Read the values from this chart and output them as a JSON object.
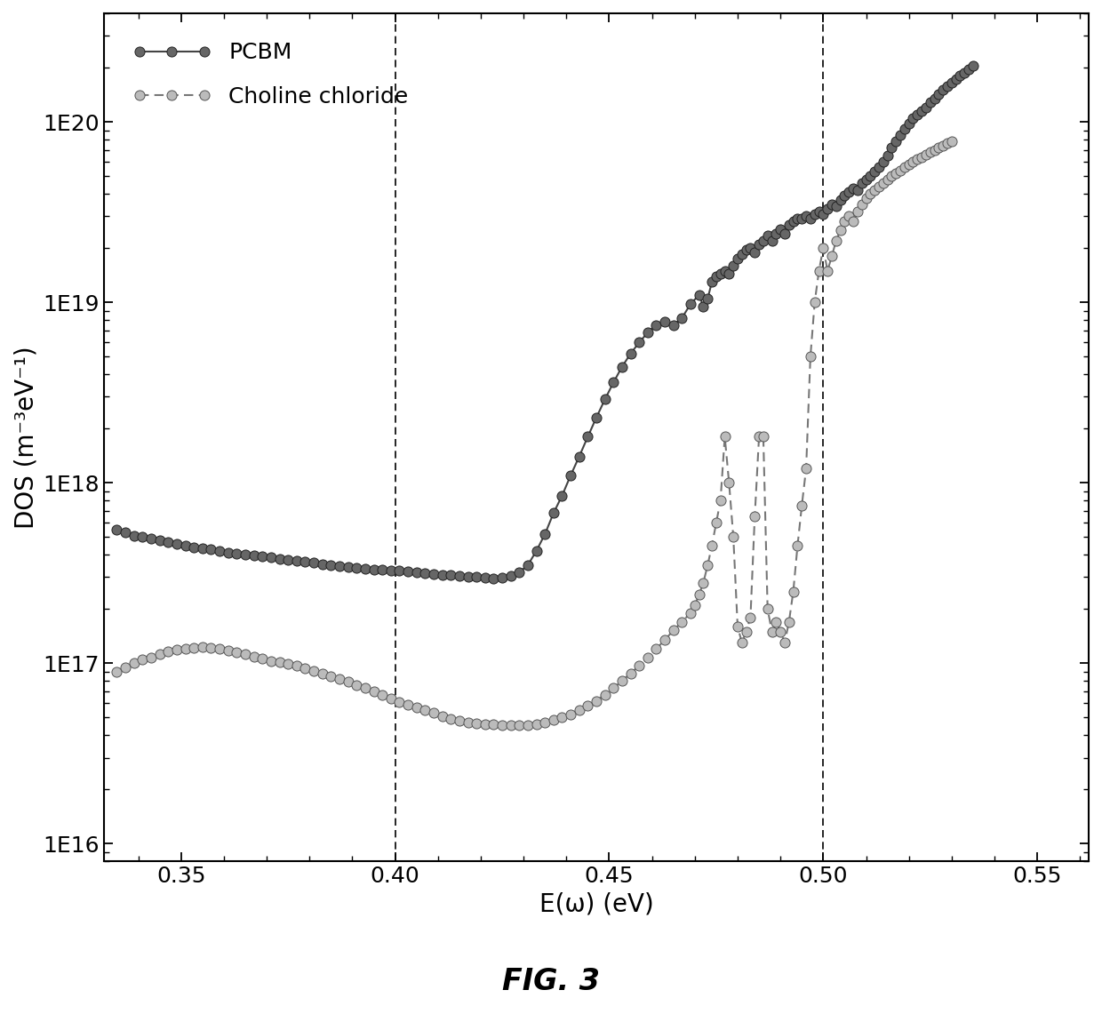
{
  "title": "FIG. 3",
  "xlabel": "E(ω) (eV)",
  "ylabel": "DOS (m⁻³eV⁻¹)",
  "xlim": [
    0.332,
    0.562
  ],
  "ylim_log": [
    8000000000000000.0,
    4e+20
  ],
  "vline1": 0.4,
  "vline2": 0.5,
  "background": "#ffffff",
  "pcbm_x": [
    0.335,
    0.337,
    0.339,
    0.341,
    0.343,
    0.345,
    0.347,
    0.349,
    0.351,
    0.353,
    0.355,
    0.357,
    0.359,
    0.361,
    0.363,
    0.365,
    0.367,
    0.369,
    0.371,
    0.373,
    0.375,
    0.377,
    0.379,
    0.381,
    0.383,
    0.385,
    0.387,
    0.389,
    0.391,
    0.393,
    0.395,
    0.397,
    0.399,
    0.401,
    0.403,
    0.405,
    0.407,
    0.409,
    0.411,
    0.413,
    0.415,
    0.417,
    0.419,
    0.421,
    0.423,
    0.425,
    0.427,
    0.429,
    0.431,
    0.433,
    0.435,
    0.437,
    0.439,
    0.441,
    0.443,
    0.445,
    0.447,
    0.449,
    0.451,
    0.453,
    0.455,
    0.457,
    0.459,
    0.461,
    0.463,
    0.465,
    0.467,
    0.469,
    0.471,
    0.472,
    0.473,
    0.474,
    0.475,
    0.476,
    0.477,
    0.478,
    0.479,
    0.48,
    0.481,
    0.482,
    0.483,
    0.484,
    0.485,
    0.486,
    0.487,
    0.488,
    0.489,
    0.49,
    0.491,
    0.492,
    0.493,
    0.494,
    0.495,
    0.496,
    0.497,
    0.498,
    0.499,
    0.5,
    0.501,
    0.502,
    0.503,
    0.504,
    0.505,
    0.506,
    0.507,
    0.508,
    0.509,
    0.51,
    0.511,
    0.512,
    0.513,
    0.514,
    0.515,
    0.516,
    0.517,
    0.518,
    0.519,
    0.52,
    0.521,
    0.522,
    0.523,
    0.524,
    0.525,
    0.526,
    0.527,
    0.528,
    0.529,
    0.53,
    0.531,
    0.532,
    0.533,
    0.534,
    0.535
  ],
  "pcbm_y": [
    5.5e+17,
    5.3e+17,
    5.1e+17,
    5e+17,
    4.9e+17,
    4.8e+17,
    4.7e+17,
    4.6e+17,
    4.5e+17,
    4.4e+17,
    4.35e+17,
    4.3e+17,
    4.2e+17,
    4.1e+17,
    4.05e+17,
    4e+17,
    3.95e+17,
    3.9e+17,
    3.85e+17,
    3.8e+17,
    3.75e+17,
    3.7e+17,
    3.65e+17,
    3.6e+17,
    3.55e+17,
    3.5e+17,
    3.45e+17,
    3.4e+17,
    3.38e+17,
    3.35e+17,
    3.32e+17,
    3.3e+17,
    3.28e+17,
    3.25e+17,
    3.22e+17,
    3.18e+17,
    3.15e+17,
    3.12e+17,
    3.1e+17,
    3.08e+17,
    3.05e+17,
    3.02e+17,
    3e+17,
    2.98e+17,
    2.96e+17,
    2.98e+17,
    3.05e+17,
    3.2e+17,
    3.5e+17,
    4.2e+17,
    5.2e+17,
    6.8e+17,
    8.5e+17,
    1.1e+18,
    1.4e+18,
    1.8e+18,
    2.3e+18,
    2.9e+18,
    3.6e+18,
    4.4e+18,
    5.2e+18,
    6e+18,
    6.8e+18,
    7.5e+18,
    7.8e+18,
    7.5e+18,
    8.2e+18,
    9.8e+18,
    1.1e+19,
    9.5e+18,
    1.05e+19,
    1.3e+19,
    1.4e+19,
    1.45e+19,
    1.5e+19,
    1.45e+19,
    1.6e+19,
    1.75e+19,
    1.85e+19,
    1.95e+19,
    2e+19,
    1.9e+19,
    2.1e+19,
    2.2e+19,
    2.35e+19,
    2.2e+19,
    2.4e+19,
    2.55e+19,
    2.4e+19,
    2.7e+19,
    2.8e+19,
    2.9e+19,
    2.9e+19,
    3e+19,
    2.9e+19,
    3.1e+19,
    3.2e+19,
    3.1e+19,
    3.3e+19,
    3.5e+19,
    3.4e+19,
    3.7e+19,
    3.9e+19,
    4.1e+19,
    4.3e+19,
    4.2e+19,
    4.6e+19,
    4.8e+19,
    5e+19,
    5.3e+19,
    5.6e+19,
    6e+19,
    6.5e+19,
    7.2e+19,
    7.8e+19,
    8.5e+19,
    9.2e+19,
    9.8e+19,
    1.05e+20,
    1.1e+20,
    1.15e+20,
    1.2e+20,
    1.28e+20,
    1.35e+20,
    1.42e+20,
    1.5e+20,
    1.58e+20,
    1.65e+20,
    1.72e+20,
    1.8e+20,
    1.88e+20,
    1.95e+20,
    2.05e+20
  ],
  "choline_x": [
    0.335,
    0.337,
    0.339,
    0.341,
    0.343,
    0.345,
    0.347,
    0.349,
    0.351,
    0.353,
    0.355,
    0.357,
    0.359,
    0.361,
    0.363,
    0.365,
    0.367,
    0.369,
    0.371,
    0.373,
    0.375,
    0.377,
    0.379,
    0.381,
    0.383,
    0.385,
    0.387,
    0.389,
    0.391,
    0.393,
    0.395,
    0.397,
    0.399,
    0.401,
    0.403,
    0.405,
    0.407,
    0.409,
    0.411,
    0.413,
    0.415,
    0.417,
    0.419,
    0.421,
    0.423,
    0.425,
    0.427,
    0.429,
    0.431,
    0.433,
    0.435,
    0.437,
    0.439,
    0.441,
    0.443,
    0.445,
    0.447,
    0.449,
    0.451,
    0.453,
    0.455,
    0.457,
    0.459,
    0.461,
    0.463,
    0.465,
    0.467,
    0.469,
    0.47,
    0.471,
    0.472,
    0.473,
    0.474,
    0.475,
    0.476,
    0.477,
    0.478,
    0.479,
    0.48,
    0.481,
    0.482,
    0.483,
    0.484,
    0.485,
    0.486,
    0.487,
    0.488,
    0.489,
    0.49,
    0.491,
    0.492,
    0.493,
    0.494,
    0.495,
    0.496,
    0.497,
    0.498,
    0.499,
    0.5,
    0.501,
    0.502,
    0.503,
    0.504,
    0.505,
    0.506,
    0.507,
    0.508,
    0.509,
    0.51,
    0.511,
    0.512,
    0.513,
    0.514,
    0.515,
    0.516,
    0.517,
    0.518,
    0.519,
    0.52,
    0.521,
    0.522,
    0.523,
    0.524,
    0.525,
    0.526,
    0.527,
    0.528,
    0.529,
    0.53
  ],
  "choline_y": [
    9e+16,
    9.5e+16,
    1e+17,
    1.05e+17,
    1.08e+17,
    1.12e+17,
    1.16e+17,
    1.19e+17,
    1.21e+17,
    1.22e+17,
    1.23e+17,
    1.22e+17,
    1.2e+17,
    1.18e+17,
    1.15e+17,
    1.12e+17,
    1.09e+17,
    1.06e+17,
    1.03e+17,
    1.01e+17,
    9.9e+16,
    9.7e+16,
    9.4e+16,
    9.1e+16,
    8.8e+16,
    8.5e+16,
    8.2e+16,
    7.9e+16,
    7.6e+16,
    7.3e+16,
    7e+16,
    6.7e+16,
    6.4e+16,
    6.1e+16,
    5.9e+16,
    5.7e+16,
    5.5e+16,
    5.3e+16,
    5.1e+16,
    4.9e+16,
    4.8e+16,
    4.7e+16,
    4.65e+16,
    4.6e+16,
    4.58e+16,
    4.56e+16,
    4.54e+16,
    4.52e+16,
    4.55e+16,
    4.6e+16,
    4.7e+16,
    4.85e+16,
    5e+16,
    5.2e+16,
    5.5e+16,
    5.8e+16,
    6.2e+16,
    6.7e+16,
    7.3e+16,
    8e+16,
    8.8e+16,
    9.7e+16,
    1.08e+17,
    1.2e+17,
    1.35e+17,
    1.52e+17,
    1.7e+17,
    1.9e+17,
    2.1e+17,
    2.4e+17,
    2.8e+17,
    3.5e+17,
    4.5e+17,
    6e+17,
    8e+17,
    1.8e+18,
    1e+18,
    5e+17,
    1.6e+17,
    1.3e+17,
    1.5e+17,
    1.8e+17,
    6.5e+17,
    1.8e+18,
    1.8e+18,
    2e+17,
    1.5e+17,
    1.7e+17,
    1.5e+17,
    1.3e+17,
    1.7e+17,
    2.5e+17,
    4.5e+17,
    7.5e+17,
    1.2e+18,
    5e+18,
    1e+19,
    1.5e+19,
    2e+19,
    1.5e+19,
    1.8e+19,
    2.2e+19,
    2.5e+19,
    2.8e+19,
    3e+19,
    2.8e+19,
    3.2e+19,
    3.5e+19,
    3.8e+19,
    4e+19,
    4.2e+19,
    4.4e+19,
    4.6e+19,
    4.8e+19,
    5e+19,
    5.2e+19,
    5.4e+19,
    5.6e+19,
    5.8e+19,
    6e+19,
    6.2e+19,
    6.4e+19,
    6.6e+19,
    6.8e+19,
    7e+19,
    7.2e+19,
    7.4e+19,
    7.6e+19,
    7.8e+19
  ]
}
